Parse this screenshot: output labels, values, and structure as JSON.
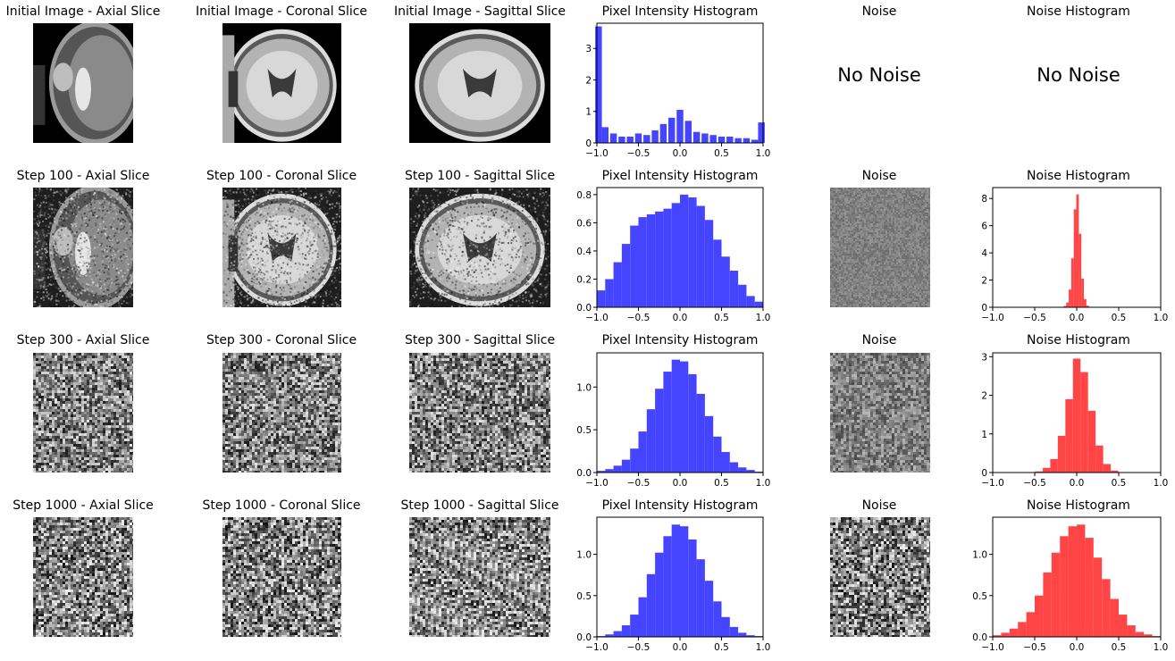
{
  "rows": [
    {
      "axial_title": "Initial Image - Axial Slice",
      "coronal_title": "Initial Image - Coronal Slice",
      "sagittal_title": "Initial Image - Sagittal Slice",
      "hist_title": "Pixel Intensity Histogram",
      "noise_title": "Noise",
      "noise_hist_title": "Noise Histogram",
      "no_noise_text": "No Noise",
      "noise_placeholder_text": "No Noise"
    },
    {
      "axial_title": "Step 100 - Axial Slice",
      "coronal_title": "Step 100 - Coronal Slice",
      "sagittal_title": "Step 100 - Sagittal Slice",
      "hist_title": "Pixel Intensity Histogram",
      "noise_title": "Noise",
      "noise_hist_title": "Noise Histogram"
    },
    {
      "axial_title": "Step 300 - Axial Slice",
      "coronal_title": "Step 300 - Coronal Slice",
      "sagittal_title": "Step 300 - Sagittal Slice",
      "hist_title": "Pixel Intensity Histogram",
      "noise_title": "Noise",
      "noise_hist_title": "Noise Histogram"
    },
    {
      "axial_title": "Step 1000 - Axial Slice",
      "coronal_title": "Step 1000 - Coronal Slice",
      "sagittal_title": "Step 1000 - Sagittal Slice",
      "hist_title": "Pixel Intensity Histogram",
      "noise_title": "Noise",
      "noise_hist_title": "Noise Histogram"
    }
  ],
  "colors": {
    "pixel_hist": "#3b3bff",
    "noise_hist": "#ff3b3b"
  },
  "chart_data": [
    {
      "type": "bar",
      "title": "Pixel Intensity Histogram",
      "color": "pixel_hist",
      "xlim": [
        -1,
        1
      ],
      "ylim": [
        0,
        3.8
      ],
      "xticks": [
        "−1.0",
        "−0.5",
        "0.0",
        "0.5",
        "1.0"
      ],
      "xtick_values": [
        -1,
        -0.5,
        0,
        0.5,
        1
      ],
      "yticks": [
        "0",
        "1",
        "2",
        "3"
      ],
      "ytick_values": [
        0,
        1,
        2,
        3
      ],
      "x": [
        -0.98,
        -0.9,
        -0.8,
        -0.7,
        -0.6,
        -0.5,
        -0.4,
        -0.3,
        -0.2,
        -0.1,
        0.0,
        0.1,
        0.2,
        0.3,
        0.4,
        0.5,
        0.6,
        0.7,
        0.8,
        0.9,
        0.98
      ],
      "y": [
        3.7,
        0.5,
        0.3,
        0.2,
        0.2,
        0.3,
        0.25,
        0.4,
        0.6,
        0.8,
        1.05,
        0.7,
        0.35,
        0.3,
        0.25,
        0.2,
        0.2,
        0.15,
        0.15,
        0.1,
        0.65
      ]
    },
    {
      "type": "bar",
      "title": "Pixel Intensity Histogram",
      "color": "pixel_hist",
      "xlim": [
        -1,
        1
      ],
      "ylim": [
        0,
        0.85
      ],
      "xticks": [
        "−1.0",
        "−0.5",
        "0.0",
        "0.5",
        "1.0"
      ],
      "xtick_values": [
        -1,
        -0.5,
        0,
        0.5,
        1
      ],
      "yticks": [
        "0.0",
        "0.2",
        "0.4",
        "0.6",
        "0.8"
      ],
      "ytick_values": [
        0,
        0.2,
        0.4,
        0.6,
        0.8
      ],
      "x": [
        -0.95,
        -0.85,
        -0.75,
        -0.65,
        -0.55,
        -0.45,
        -0.35,
        -0.25,
        -0.15,
        -0.05,
        0.05,
        0.15,
        0.25,
        0.35,
        0.45,
        0.55,
        0.65,
        0.75,
        0.85,
        0.95
      ],
      "y": [
        0.12,
        0.2,
        0.32,
        0.45,
        0.58,
        0.64,
        0.66,
        0.68,
        0.7,
        0.74,
        0.8,
        0.78,
        0.72,
        0.62,
        0.48,
        0.36,
        0.26,
        0.16,
        0.08,
        0.04
      ]
    },
    {
      "type": "bar",
      "title": "Pixel Intensity Histogram",
      "color": "pixel_hist",
      "xlim": [
        -1,
        1
      ],
      "ylim": [
        0,
        1.4
      ],
      "xticks": [
        "−1.0",
        "−0.5",
        "0.0",
        "0.5",
        "1.0"
      ],
      "xtick_values": [
        -1,
        -0.5,
        0,
        0.5,
        1
      ],
      "yticks": [
        "0.0",
        "0.5",
        "1.0"
      ],
      "ytick_values": [
        0,
        0.5,
        1.0
      ],
      "x": [
        -0.95,
        -0.85,
        -0.75,
        -0.65,
        -0.55,
        -0.45,
        -0.35,
        -0.25,
        -0.15,
        -0.05,
        0.05,
        0.15,
        0.25,
        0.35,
        0.45,
        0.55,
        0.65,
        0.75,
        0.85,
        0.95
      ],
      "y": [
        0.02,
        0.04,
        0.08,
        0.15,
        0.28,
        0.48,
        0.74,
        0.98,
        1.18,
        1.32,
        1.3,
        1.15,
        0.92,
        0.66,
        0.42,
        0.24,
        0.12,
        0.06,
        0.03,
        0.01
      ]
    },
    {
      "type": "bar",
      "title": "Pixel Intensity Histogram",
      "color": "pixel_hist",
      "xlim": [
        -1,
        1
      ],
      "ylim": [
        0,
        1.45
      ],
      "xticks": [
        "−1.0",
        "−0.5",
        "0.0",
        "0.5",
        "1.0"
      ],
      "xtick_values": [
        -1,
        -0.5,
        0,
        0.5,
        1
      ],
      "yticks": [
        "0.0",
        "0.5",
        "1.0"
      ],
      "ytick_values": [
        0,
        0.5,
        1.0
      ],
      "x": [
        -0.95,
        -0.85,
        -0.75,
        -0.65,
        -0.55,
        -0.45,
        -0.35,
        -0.25,
        -0.15,
        -0.05,
        0.05,
        0.15,
        0.25,
        0.35,
        0.45,
        0.55,
        0.65,
        0.75,
        0.85,
        0.95
      ],
      "y": [
        0.01,
        0.03,
        0.07,
        0.14,
        0.27,
        0.48,
        0.76,
        1.02,
        1.22,
        1.36,
        1.34,
        1.18,
        0.94,
        0.68,
        0.43,
        0.24,
        0.12,
        0.05,
        0.02,
        0.01
      ]
    },
    {
      "type": "bar",
      "title": "Noise Histogram",
      "color": "noise_hist",
      "xlim": [
        -1,
        1
      ],
      "ylim": [
        0,
        8.8
      ],
      "xticks": [
        "−1.0",
        "−0.5",
        "0.0",
        "0.5",
        "1.0"
      ],
      "xtick_values": [
        -1,
        -0.5,
        0,
        0.5,
        1
      ],
      "yticks": [
        "0",
        "2",
        "4",
        "6",
        "8"
      ],
      "ytick_values": [
        0,
        2,
        4,
        6,
        8
      ],
      "x": [
        -0.14,
        -0.11,
        -0.08,
        -0.05,
        -0.02,
        0.01,
        0.04,
        0.07,
        0.1,
        0.13
      ],
      "y": [
        0.1,
        0.35,
        1.3,
        3.6,
        7.2,
        8.3,
        5.4,
        2.1,
        0.6,
        0.12
      ]
    },
    {
      "type": "bar",
      "title": "Noise Histogram",
      "color": "noise_hist",
      "xlim": [
        -1,
        1
      ],
      "ylim": [
        0,
        3.1
      ],
      "xticks": [
        "−1.0",
        "−0.5",
        "0.0",
        "0.5",
        "1.0"
      ],
      "xtick_values": [
        -1,
        -0.5,
        0,
        0.5,
        1
      ],
      "yticks": [
        "0",
        "1",
        "2",
        "3"
      ],
      "ytick_values": [
        0,
        1,
        2,
        3
      ],
      "x": [
        -0.45,
        -0.36,
        -0.27,
        -0.18,
        -0.09,
        0.0,
        0.09,
        0.18,
        0.27,
        0.36,
        0.45
      ],
      "y": [
        0.03,
        0.12,
        0.35,
        0.95,
        1.9,
        2.95,
        2.6,
        1.6,
        0.7,
        0.22,
        0.05
      ]
    },
    {
      "type": "bar",
      "title": "Noise Histogram",
      "color": "noise_hist",
      "xlim": [
        -1,
        1
      ],
      "ylim": [
        0,
        1.45
      ],
      "xticks": [
        "−1.0",
        "−0.5",
        "0.0",
        "0.5",
        "1.0"
      ],
      "xtick_values": [
        -1,
        -0.5,
        0,
        0.5,
        1
      ],
      "yticks": [
        "0.0",
        "0.5",
        "1.0"
      ],
      "ytick_values": [
        0,
        0.5,
        1.0
      ],
      "x": [
        -0.95,
        -0.85,
        -0.75,
        -0.65,
        -0.55,
        -0.45,
        -0.35,
        -0.25,
        -0.15,
        -0.05,
        0.05,
        0.15,
        0.25,
        0.35,
        0.45,
        0.55,
        0.65,
        0.75,
        0.85,
        0.95
      ],
      "y": [
        0.02,
        0.05,
        0.1,
        0.18,
        0.3,
        0.5,
        0.78,
        1.02,
        1.22,
        1.34,
        1.36,
        1.2,
        0.96,
        0.7,
        0.46,
        0.27,
        0.14,
        0.06,
        0.03,
        0.01
      ]
    }
  ]
}
